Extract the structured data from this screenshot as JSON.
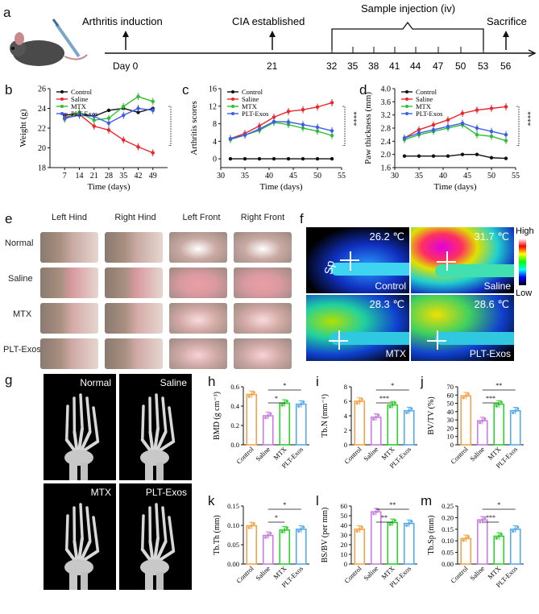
{
  "panel_labels": {
    "a": "a",
    "b": "b",
    "c": "c",
    "d": "d",
    "e": "e",
    "f": "f",
    "g": "g",
    "h": "h",
    "i": "i",
    "j": "j",
    "k": "k",
    "l": "l",
    "m": "m"
  },
  "timeline": {
    "events": [
      "Arthritis induction",
      "CIA established",
      "Sample injection (iv)",
      "Sacrifice"
    ],
    "ticks": [
      "Day 0",
      "21",
      "32",
      "35",
      "38",
      "41",
      "44",
      "47",
      "50",
      "53",
      "56"
    ]
  },
  "legend_groups": [
    "Control",
    "Saline",
    "MTX",
    "PLT-Exos"
  ],
  "colors": {
    "control": "#111111",
    "saline": "#e8262b",
    "mtx": "#2fbf2f",
    "plt": "#3a5ee8",
    "bar_control": "#f5a34a",
    "bar_saline": "#c77ee0",
    "bar_mtx": "#2fcf2f",
    "bar_plt": "#55aaee"
  },
  "chart_data": [
    {
      "id": "b",
      "type": "line",
      "xlabel": "Time (days)",
      "ylabel": "Weight (g)",
      "x": [
        7,
        14,
        21,
        28,
        35,
        42,
        49
      ],
      "xticks": [
        "7",
        "14",
        "21",
        "28",
        "35",
        "42",
        "49"
      ],
      "yticks": [
        "18",
        "20",
        "22",
        "24",
        "26"
      ],
      "xlim": [
        0,
        56
      ],
      "ylim": [
        18,
        26
      ],
      "series": [
        {
          "name": "Control",
          "values": [
            23.3,
            23.5,
            23.2,
            23.8,
            24.0,
            23.6,
            24.0
          ]
        },
        {
          "name": "Saline",
          "values": [
            23.1,
            23.4,
            22.2,
            21.8,
            20.8,
            20.1,
            19.5
          ]
        },
        {
          "name": "MTX",
          "values": [
            22.9,
            23.6,
            22.8,
            23.0,
            24.2,
            25.2,
            24.7
          ]
        },
        {
          "name": "PLT-Exos",
          "values": [
            23.0,
            23.3,
            23.2,
            22.5,
            23.3,
            24.0,
            23.8
          ]
        }
      ],
      "significance": "****"
    },
    {
      "id": "c",
      "type": "line",
      "xlabel": "Time (days)",
      "ylabel": "Arthritis scores",
      "x": [
        32,
        35,
        38,
        41,
        44,
        47,
        50,
        53
      ],
      "xticks": [
        "30",
        "35",
        "40",
        "45",
        "50",
        "55"
      ],
      "yticks": [
        "0",
        "4",
        "8",
        "12",
        "16"
      ],
      "xlim": [
        30,
        55
      ],
      "ylim": [
        -2,
        16
      ],
      "series": [
        {
          "name": "Control",
          "values": [
            0,
            0,
            0,
            0,
            0,
            0,
            0,
            0
          ]
        },
        {
          "name": "Saline",
          "values": [
            4.6,
            5.8,
            7.5,
            9.5,
            10.8,
            11.2,
            11.8,
            12.8
          ]
        },
        {
          "name": "MTX",
          "values": [
            4.4,
            5.4,
            6.5,
            8.3,
            7.8,
            7.0,
            6.3,
            5.3
          ]
        },
        {
          "name": "PLT-Exos",
          "values": [
            4.6,
            5.4,
            6.8,
            8.5,
            8.4,
            7.8,
            7.2,
            6.4
          ]
        }
      ],
      "significance": "****"
    },
    {
      "id": "d",
      "type": "line",
      "xlabel": "Time (days)",
      "ylabel": "Paw thickness (mm)",
      "x": [
        32,
        35,
        38,
        41,
        44,
        47,
        50,
        53
      ],
      "xticks": [
        "30",
        "35",
        "40",
        "45",
        "50",
        "55"
      ],
      "yticks": [
        "1.6",
        "2.0",
        "2.4",
        "2.8",
        "3.2",
        "3.6",
        "4.0"
      ],
      "xlim": [
        30,
        55
      ],
      "ylim": [
        1.6,
        4.0
      ],
      "series": [
        {
          "name": "Control",
          "values": [
            1.95,
            1.95,
            1.95,
            1.95,
            2.0,
            2.0,
            1.9,
            1.88
          ]
        },
        {
          "name": "Saline",
          "values": [
            2.5,
            2.75,
            2.9,
            3.05,
            3.25,
            3.35,
            3.4,
            3.45
          ]
        },
        {
          "name": "MTX",
          "values": [
            2.45,
            2.6,
            2.7,
            2.8,
            2.9,
            2.6,
            2.55,
            2.42
          ]
        },
        {
          "name": "PLT-Exos",
          "values": [
            2.5,
            2.65,
            2.75,
            2.85,
            2.95,
            2.8,
            2.7,
            2.6
          ]
        }
      ],
      "significance": "****"
    },
    {
      "id": "h",
      "type": "bar",
      "ylabel": "BMD (g cm⁻³)",
      "categories": [
        "Control",
        "Saline",
        "MTX",
        "PLT-Exos"
      ],
      "values": [
        0.52,
        0.3,
        0.43,
        0.42
      ],
      "yticks": [
        "0.0",
        "0.2",
        "0.4",
        "0.6"
      ],
      "ylim": [
        0,
        0.6
      ],
      "sig": [
        "*",
        "*"
      ]
    },
    {
      "id": "i",
      "type": "bar",
      "ylabel": "Tb.N (mm⁻¹)",
      "categories": [
        "Control",
        "Saline",
        "MTX",
        "PLT-Exos"
      ],
      "values": [
        6.0,
        3.8,
        5.5,
        4.7
      ],
      "yticks": [
        "0",
        "2",
        "4",
        "6",
        "8"
      ],
      "ylim": [
        0,
        8
      ],
      "sig": [
        "***",
        "*"
      ]
    },
    {
      "id": "j",
      "type": "bar",
      "ylabel": "BV/TV (%)",
      "categories": [
        "Control",
        "Saline",
        "MTX",
        "PLT-Exos"
      ],
      "values": [
        59,
        29,
        49,
        41
      ],
      "yticks": [
        "0",
        "10",
        "20",
        "30",
        "40",
        "50",
        "60",
        "70"
      ],
      "ylim": [
        0,
        70
      ],
      "sig": [
        "***",
        "**"
      ]
    },
    {
      "id": "k",
      "type": "bar",
      "ylabel": "Tb.Th (mm)",
      "categories": [
        "Control",
        "Saline",
        "MTX",
        "PLT-Exos"
      ],
      "values": [
        0.099,
        0.074,
        0.088,
        0.09
      ],
      "yticks": [
        "0.00",
        "0.05",
        "0.10",
        "0.15"
      ],
      "ylim": [
        0,
        0.15
      ],
      "sig": [
        "*",
        "*"
      ]
    },
    {
      "id": "l",
      "type": "bar",
      "ylabel": "BS/BV (per mm)",
      "categories": [
        "Control",
        "Saline",
        "MTX",
        "PLT-Exos"
      ],
      "values": [
        36,
        54,
        43,
        42
      ],
      "yticks": [
        "0",
        "10",
        "20",
        "30",
        "40",
        "50",
        "60"
      ],
      "ylim": [
        0,
        60
      ],
      "sig": [
        "**",
        "**"
      ]
    },
    {
      "id": "m",
      "type": "bar",
      "ylabel": "Tb.Sp (mm)",
      "categories": [
        "Control",
        "Saline",
        "MTX",
        "PLT-Exos"
      ],
      "values": [
        0.11,
        0.19,
        0.12,
        0.15
      ],
      "yticks": [
        "0.00",
        "0.05",
        "0.10",
        "0.15",
        "0.20",
        "0.25"
      ],
      "ylim": [
        0,
        0.25
      ],
      "sig": [
        "***",
        "*"
      ]
    }
  ],
  "photo_panel": {
    "columns": [
      "Left Hind",
      "Right Hind",
      "Left Front",
      "Right Front"
    ],
    "rows": [
      "Normal",
      "Saline",
      "MTX",
      "PLT-Exos"
    ]
  },
  "thermal_panel": {
    "scale_high": "High",
    "scale_low": "Low",
    "images": [
      {
        "temp": "26.2 ℃",
        "name": "Control"
      },
      {
        "temp": "31.7 ℃",
        "name": "Saline"
      },
      {
        "temp": "28.3 ℃",
        "name": "MTX"
      },
      {
        "temp": "28.6 ℃",
        "name": "PLT-Exos"
      }
    ],
    "sp_label": "Sp"
  },
  "ct_panel": {
    "images": [
      "Normal",
      "Saline",
      "MTX",
      "PLT-Exos"
    ]
  }
}
